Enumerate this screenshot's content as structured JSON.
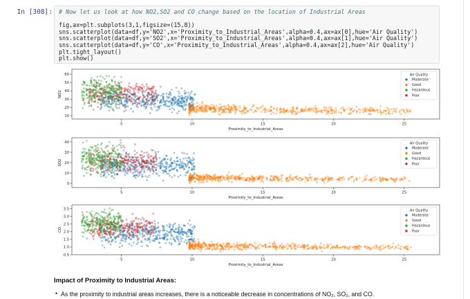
{
  "cell": {
    "prompt": "In [308]:",
    "code": [
      {
        "type": "comment",
        "text": "# Now let us look at how NO2,SO2 and CO change based on the location of Industrial Areas"
      },
      {
        "type": "blank",
        "text": ""
      },
      {
        "type": "code",
        "text": "fig,ax=plt.subplots(3,1,figsize=(15,8))"
      },
      {
        "type": "code",
        "text": "sns.scatterplot(data=df,y='NO2',x='Proximity_to_Industrial_Areas',alpha=0.4,ax=ax[0],hue='Air Quality')"
      },
      {
        "type": "code",
        "text": "sns.scatterplot(data=df,y='SO2',x='Proximity_to_Industrial_Areas',alpha=0.4,ax=ax[1],hue='Air Quality')"
      },
      {
        "type": "code",
        "text": "sns.scatterplot(data=df,y='CO',x='Proximity_to_Industrial_Areas',alpha=0.4,ax=ax[2],hue='Air Quality')"
      },
      {
        "type": "code",
        "text": "plt.tight_layout()"
      },
      {
        "type": "code",
        "text": "plt.show()"
      }
    ]
  },
  "legend": {
    "title": "Air Quality",
    "entries": [
      {
        "label": "Moderate",
        "color": "#1f77b4"
      },
      {
        "label": "Good",
        "color": "#ff7f0e"
      },
      {
        "label": "Hazardous",
        "color": "#2ca02c"
      },
      {
        "label": "Poor",
        "color": "#d62728"
      }
    ]
  },
  "chart_data": [
    {
      "type": "scatter",
      "title": "",
      "xlabel": "Proximity_to_Industrial_Areas",
      "ylabel": "NO2",
      "xlim": [
        1.5,
        27.5
      ],
      "ylim": [
        6,
        66
      ],
      "xticks": [
        "5",
        "10",
        "15",
        "20",
        "25"
      ],
      "yticks": [
        "10",
        "20",
        "30",
        "40",
        "50",
        "60"
      ],
      "legend_placement": "top-right",
      "series": [
        {
          "name": "Hazardous",
          "color": "#2ca02c",
          "x_range": [
            2.2,
            5.0
          ],
          "y_range": [
            15,
            62
          ]
        },
        {
          "name": "Poor",
          "color": "#d62728",
          "x_range": [
            2.7,
            7.5
          ],
          "y_range": [
            15,
            55
          ]
        },
        {
          "name": "Moderate",
          "color": "#1f77b4",
          "x_range": [
            3.5,
            10.2
          ],
          "y_range": [
            12,
            45
          ]
        },
        {
          "name": "Good",
          "color": "#ff7f0e",
          "x_range": [
            9.8,
            25.5
          ],
          "y_range": [
            10,
            32
          ]
        }
      ]
    },
    {
      "type": "scatter",
      "title": "",
      "xlabel": "Proximity_to_Industrial_Areas",
      "ylabel": "SO2",
      "xlim": [
        1.5,
        27.5
      ],
      "ylim": [
        -4,
        44
      ],
      "xticks": [
        "5",
        "10",
        "15",
        "20",
        "25"
      ],
      "yticks": [
        "0",
        "10",
        "20",
        "30",
        "40"
      ],
      "legend_placement": "top-right",
      "series": [
        {
          "name": "Hazardous",
          "color": "#2ca02c",
          "x_range": [
            2.2,
            5.0
          ],
          "y_range": [
            5,
            42
          ]
        },
        {
          "name": "Poor",
          "color": "#d62728",
          "x_range": [
            2.7,
            7.5
          ],
          "y_range": [
            5,
            38
          ]
        },
        {
          "name": "Moderate",
          "color": "#1f77b4",
          "x_range": [
            3.5,
            10.2
          ],
          "y_range": [
            2,
            32
          ]
        },
        {
          "name": "Good",
          "color": "#ff7f0e",
          "x_range": [
            9.8,
            25.5
          ],
          "y_range": [
            0,
            14
          ]
        }
      ]
    },
    {
      "type": "scatter",
      "title": "",
      "xlabel": "Proximity_to_Industrial_Areas",
      "ylabel": "CO",
      "xlim": [
        1.5,
        27.5
      ],
      "ylim": [
        0.5,
        3.75
      ],
      "xticks": [
        "5",
        "10",
        "15",
        "20",
        "25"
      ],
      "yticks": [
        "0.5",
        "1.0",
        "1.5",
        "2.0",
        "2.5",
        "3.0",
        "3.5"
      ],
      "legend_placement": "top-right",
      "series": [
        {
          "name": "Hazardous",
          "color": "#2ca02c",
          "x_range": [
            2.2,
            5.0
          ],
          "y_range": [
            1.5,
            3.6
          ]
        },
        {
          "name": "Poor",
          "color": "#d62728",
          "x_range": [
            2.7,
            7.5
          ],
          "y_range": [
            1.3,
            3.2
          ]
        },
        {
          "name": "Moderate",
          "color": "#1f77b4",
          "x_range": [
            3.5,
            10.2
          ],
          "y_range": [
            0.9,
            2.9
          ]
        },
        {
          "name": "Good",
          "color": "#ff7f0e",
          "x_range": [
            9.8,
            25.5
          ],
          "y_range": [
            0.7,
            1.7
          ]
        }
      ]
    }
  ],
  "markdown": {
    "heading": "Impact of Proximity to Industrial Areas:",
    "bullet": "As the proximity to industrial areas increases, there is a noticeable decrease in concentrations of NO₂, SO₂, and CO."
  }
}
